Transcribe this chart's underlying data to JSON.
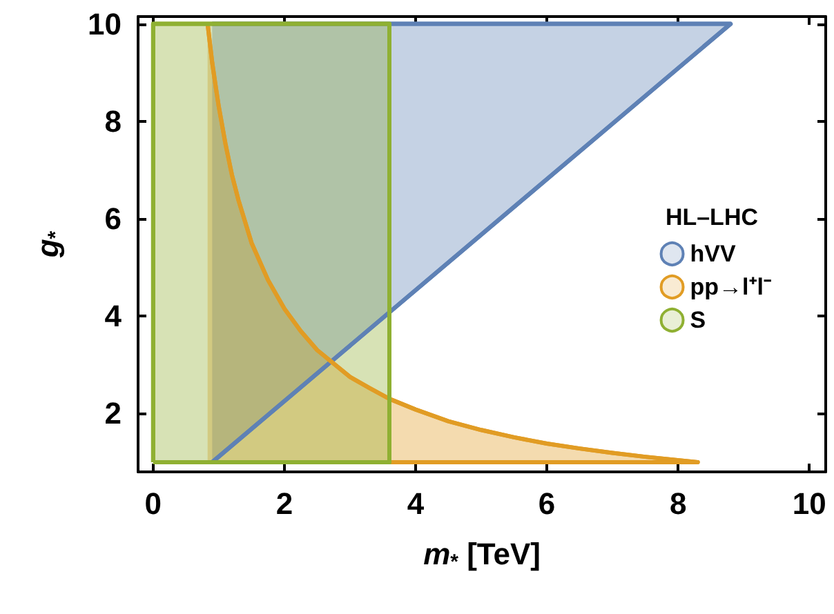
{
  "chart_data": {
    "type": "area",
    "xlabel": "m$_{*}$ [TeV]",
    "ylabel": "g$_{*}$",
    "legend_title": "HL–LHC",
    "xlim": [
      -0.23,
      10.25
    ],
    "ylim": [
      0.8,
      10.15
    ],
    "xticks": [
      0,
      2,
      4,
      6,
      8,
      10
    ],
    "yticks": [
      2,
      4,
      6,
      8,
      10
    ],
    "grid": false,
    "legend": "right",
    "marker": "none",
    "series": [
      {
        "name": "hVV",
        "color": "#5e81b5",
        "x": [
          0.9,
          8.8,
          0.9
        ],
        "values": [
          1,
          10,
          10
        ]
      },
      {
        "name": "pp→l⁺l⁻",
        "color": "#e19c24",
        "x": [
          0.83,
          0.87,
          0.9,
          0.95,
          1,
          1.1,
          1.2,
          1.3,
          1.5,
          1.75,
          2,
          2.25,
          2.5,
          3,
          3.3,
          3.6,
          4,
          4.5,
          5,
          5.5,
          6,
          6.5,
          7,
          7.5,
          8.3,
          0.83
        ],
        "values": [
          10,
          9.54,
          9.2,
          8.74,
          8.3,
          7.55,
          6.9,
          6.38,
          5.5,
          4.74,
          4.15,
          3.69,
          3.3,
          2.75,
          2.52,
          2.3,
          2.08,
          1.84,
          1.66,
          1.51,
          1.38,
          1.28,
          1.19,
          1.11,
          1,
          1
        ]
      },
      {
        "name": "S",
        "color": "#8fb032",
        "x": [
          0,
          0,
          3.6,
          3.6,
          0
        ],
        "values": [
          1,
          10,
          10,
          1,
          1
        ]
      }
    ]
  }
}
